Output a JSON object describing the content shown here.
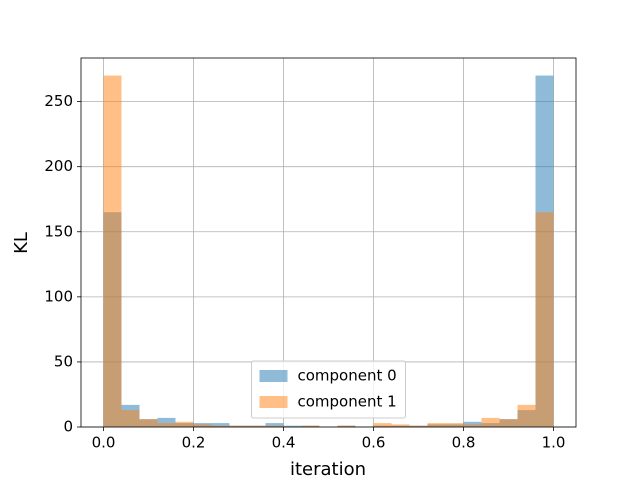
{
  "chart_data": {
    "type": "histogram",
    "xlabel": "iteration",
    "ylabel": "KL",
    "bins": [
      0,
      0.04,
      0.08,
      0.12,
      0.16,
      0.2,
      0.24,
      0.28,
      0.32,
      0.36,
      0.4,
      0.44,
      0.48,
      0.52,
      0.56,
      0.6,
      0.64,
      0.68,
      0.72,
      0.76,
      0.8,
      0.84,
      0.88,
      0.92,
      0.96,
      1.0
    ],
    "series": [
      {
        "name": "component 0",
        "color": "#1f77b4",
        "values": [
          165,
          17,
          6,
          7,
          3,
          3,
          3,
          1,
          1,
          3,
          1,
          1,
          0,
          1,
          0,
          1,
          1,
          1,
          2,
          2,
          4,
          3,
          6,
          13,
          270
        ]
      },
      {
        "name": "component 1",
        "color": "#ff7f0e",
        "values": [
          270,
          13,
          6,
          3,
          4,
          2,
          1,
          1,
          1,
          1,
          0,
          1,
          0,
          1,
          0,
          3,
          2,
          1,
          3,
          3,
          2,
          7,
          6,
          17,
          165
        ]
      }
    ],
    "opacity": 0.5,
    "xlim": [
      -0.05,
      1.05
    ],
    "ylim": [
      0,
      283.5
    ],
    "xticks": [
      {
        "value": 0,
        "label": "0.0"
      },
      0.2,
      0.4,
      0.6,
      0.8,
      {
        "value": 1,
        "label": "1.0"
      }
    ],
    "yticks": [
      0,
      50,
      100,
      150,
      200,
      250
    ],
    "grid": true,
    "legend": "lower center"
  }
}
